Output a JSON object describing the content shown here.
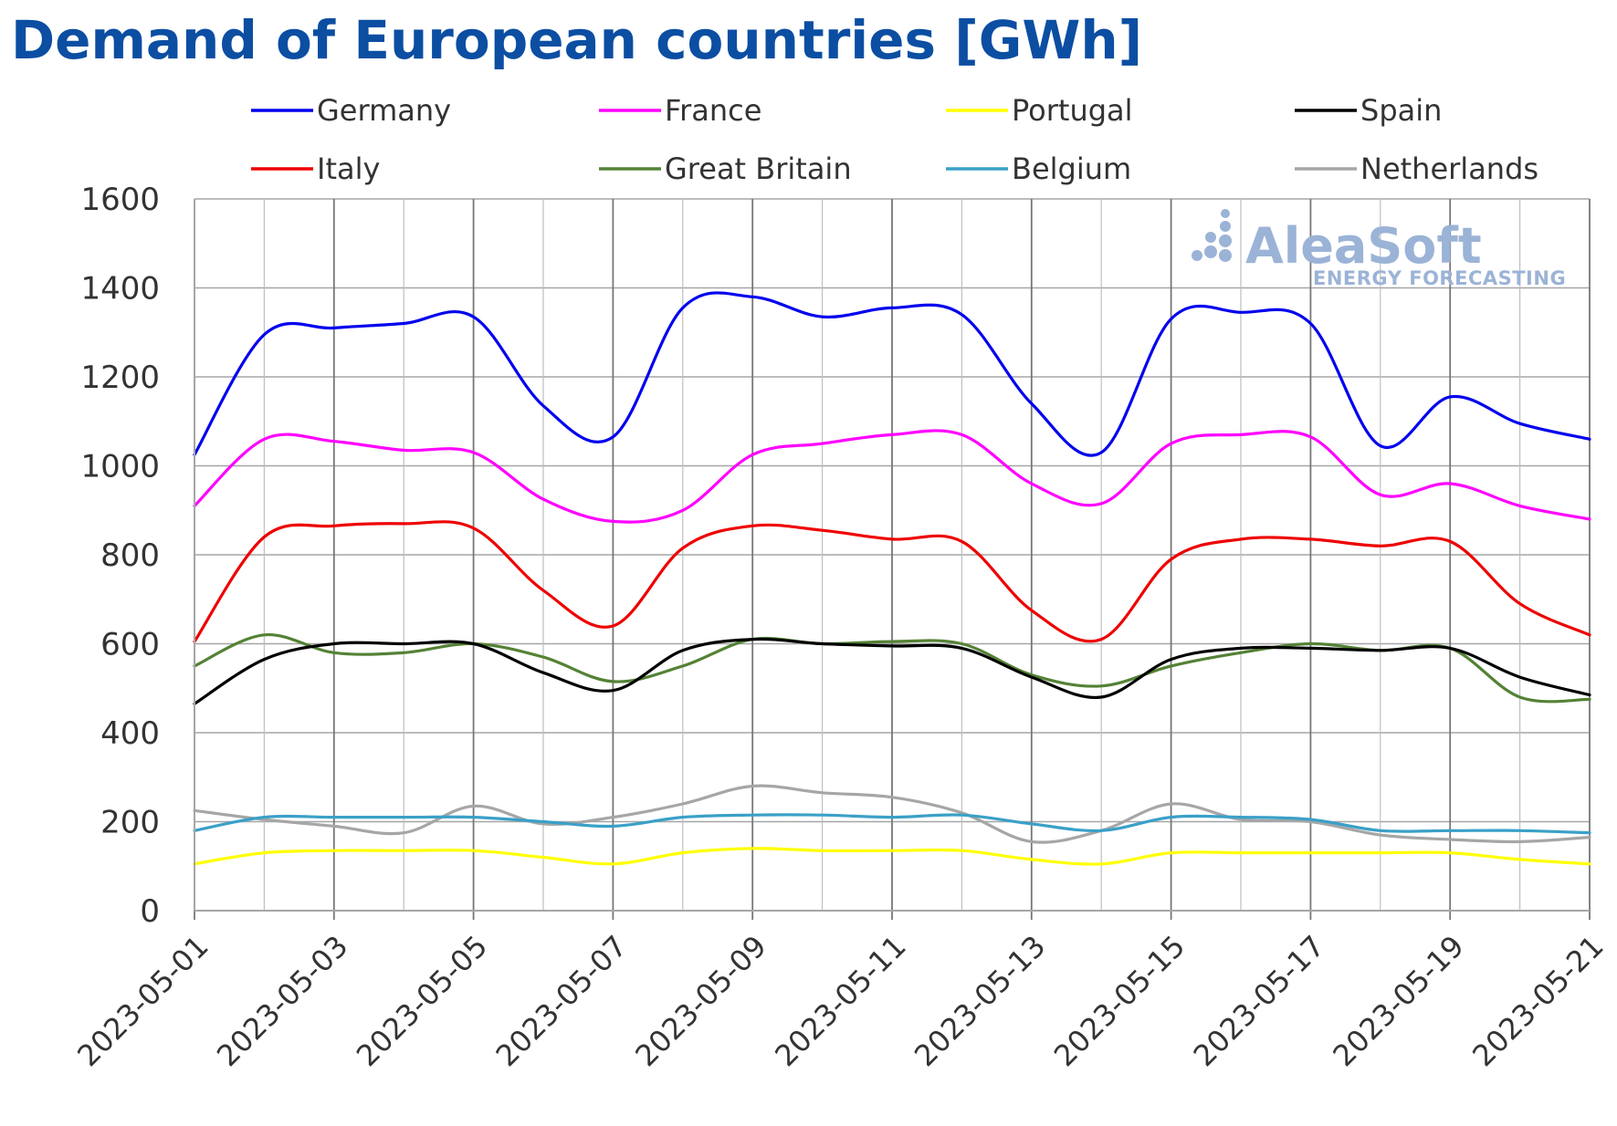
{
  "chart_data": {
    "type": "line",
    "title": "Demand of European countries [GWh]",
    "xlabel": "",
    "ylabel": "",
    "ylim": [
      0,
      1600
    ],
    "yticks": [
      0,
      200,
      400,
      600,
      800,
      1000,
      1200,
      1400,
      1600
    ],
    "grid": true,
    "legend_position": "top",
    "x": [
      "2023-05-01",
      "2023-05-02",
      "2023-05-03",
      "2023-05-04",
      "2023-05-05",
      "2023-05-06",
      "2023-05-07",
      "2023-05-08",
      "2023-05-09",
      "2023-05-10",
      "2023-05-11",
      "2023-05-12",
      "2023-05-13",
      "2023-05-14",
      "2023-05-15",
      "2023-05-16",
      "2023-05-17",
      "2023-05-18",
      "2023-05-19",
      "2023-05-20",
      "2023-05-21"
    ],
    "xtick_labels": [
      "2023-05-01",
      "2023-05-03",
      "2023-05-05",
      "2023-05-07",
      "2023-05-09",
      "2023-05-11",
      "2023-05-13",
      "2023-05-15",
      "2023-05-17",
      "2023-05-19",
      "2023-05-21"
    ],
    "series": [
      {
        "name": "Germany",
        "color": "#0000ee",
        "values": [
          1025,
          1295,
          1310,
          1320,
          1335,
          1135,
          1065,
          1355,
          1380,
          1335,
          1355,
          1340,
          1140,
          1030,
          1330,
          1345,
          1320,
          1045,
          1155,
          1095,
          1060
        ]
      },
      {
        "name": "France",
        "color": "#ff00ff",
        "values": [
          910,
          1060,
          1055,
          1035,
          1030,
          925,
          875,
          900,
          1025,
          1050,
          1070,
          1070,
          960,
          915,
          1050,
          1070,
          1065,
          935,
          960,
          910,
          880
        ]
      },
      {
        "name": "Portugal",
        "color": "#ffff00",
        "values": [
          105,
          130,
          135,
          135,
          135,
          120,
          105,
          130,
          140,
          135,
          135,
          135,
          115,
          105,
          130,
          130,
          130,
          130,
          130,
          115,
          105
        ]
      },
      {
        "name": "Spain",
        "color": "#000000",
        "values": [
          465,
          565,
          600,
          600,
          600,
          535,
          495,
          585,
          610,
          600,
          595,
          590,
          525,
          480,
          565,
          590,
          590,
          585,
          590,
          525,
          485
        ]
      },
      {
        "name": "Italy",
        "color": "#ee0000",
        "values": [
          605,
          840,
          865,
          870,
          860,
          720,
          640,
          815,
          865,
          855,
          835,
          830,
          675,
          610,
          790,
          835,
          835,
          820,
          830,
          690,
          620
        ]
      },
      {
        "name": "Great Britain",
        "color": "#548235",
        "values": [
          550,
          620,
          580,
          580,
          600,
          570,
          515,
          550,
          610,
          600,
          605,
          600,
          530,
          505,
          550,
          580,
          600,
          585,
          590,
          480,
          475
        ]
      },
      {
        "name": "Belgium",
        "color": "#3aa0c8",
        "values": [
          180,
          210,
          210,
          210,
          210,
          200,
          190,
          210,
          215,
          215,
          210,
          215,
          195,
          180,
          210,
          210,
          205,
          180,
          180,
          180,
          175
        ]
      },
      {
        "name": "Netherlands",
        "color": "#a6a6a6",
        "values": [
          225,
          205,
          190,
          175,
          235,
          195,
          210,
          240,
          280,
          265,
          255,
          220,
          155,
          180,
          240,
          205,
          200,
          170,
          160,
          155,
          165
        ]
      }
    ],
    "watermark": {
      "brand": "AleaSoft",
      "tagline": "ENERGY FORECASTING"
    }
  }
}
